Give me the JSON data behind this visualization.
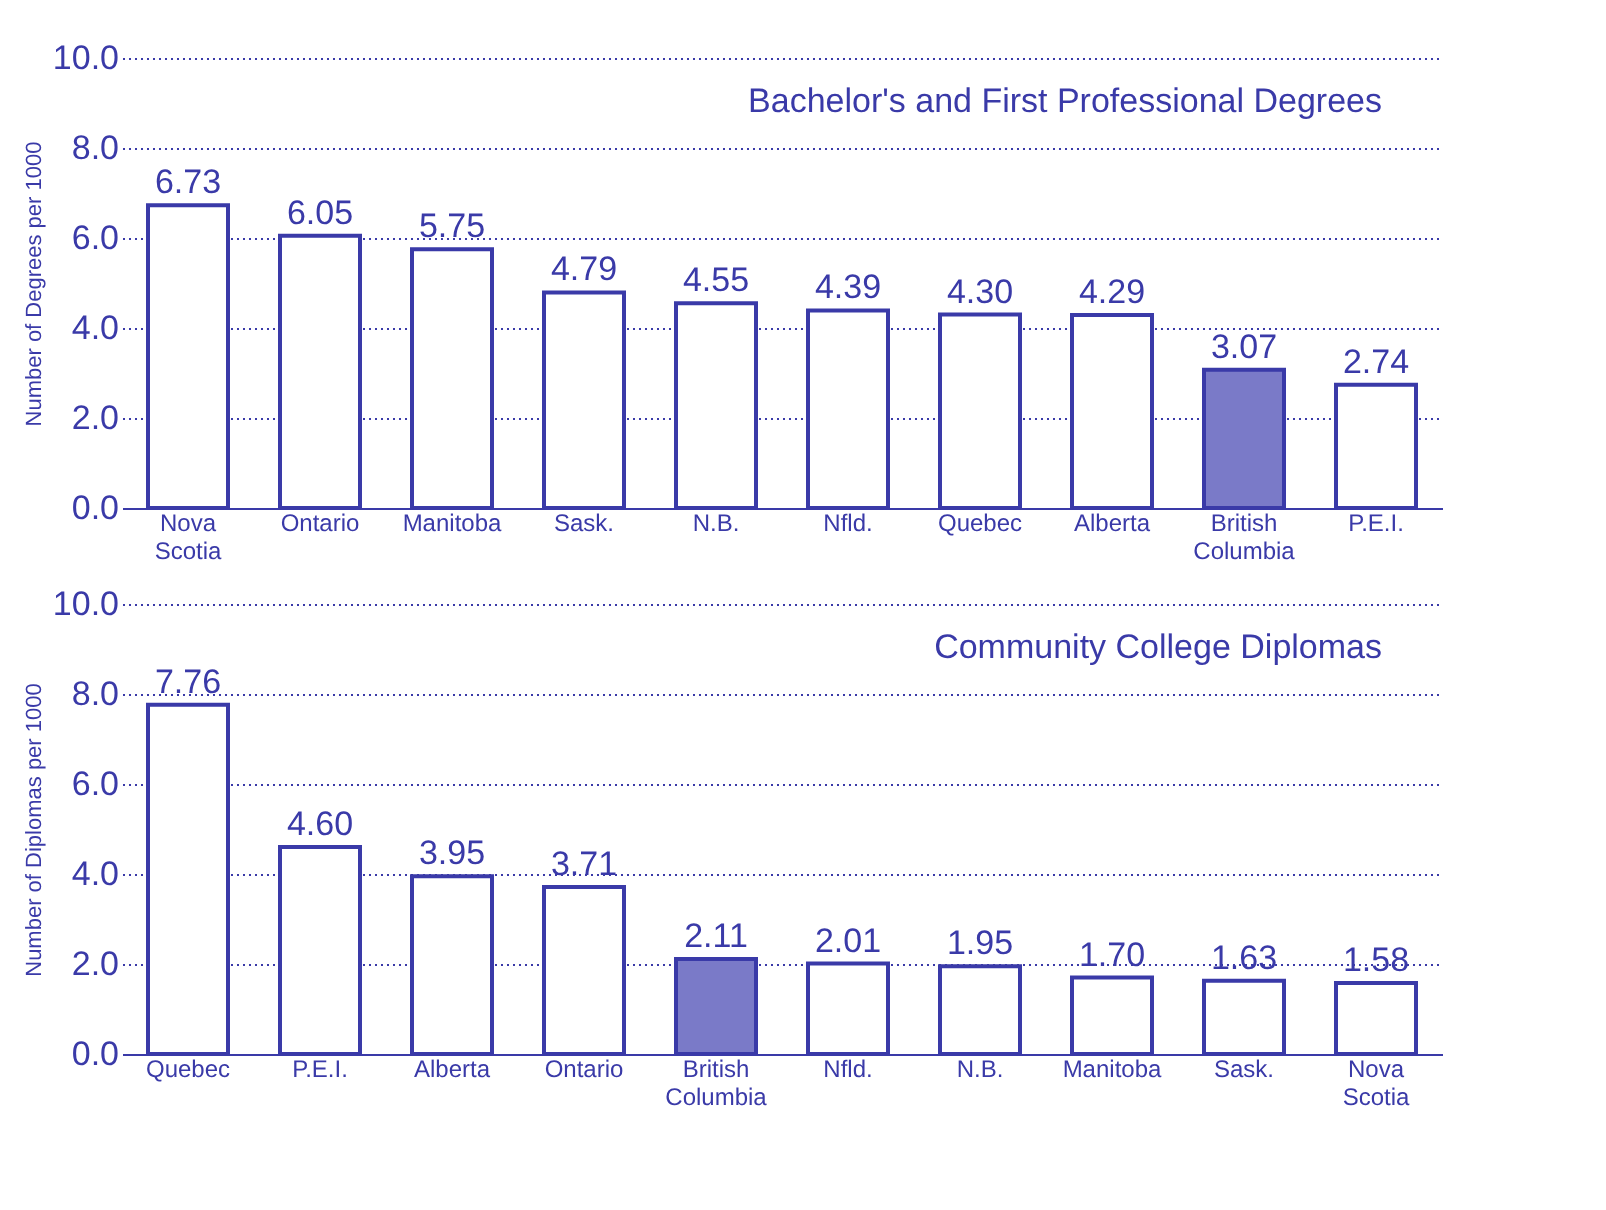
{
  "chart_data": [
    {
      "type": "bar",
      "title": "Bachelor's and First Professional Degrees",
      "ylabel": "Number of Degrees per 1000",
      "categories": [
        "Nova Scotia",
        "Ontario",
        "Manitoba",
        "Sask.",
        "N.B.",
        "Nfld.",
        "Quebec",
        "Alberta",
        "British Columbia",
        "P.E.I."
      ],
      "values": [
        6.73,
        6.05,
        5.75,
        4.79,
        4.55,
        4.39,
        4.3,
        4.29,
        3.07,
        2.74
      ],
      "colors": [
        "#ffffff",
        "#ffffff",
        "#ffffff",
        "#ffffff",
        "#ffffff",
        "#ffffff",
        "#ffffff",
        "#ffffff",
        "#7a7ac8",
        "#ffffff"
      ],
      "ylim": [
        0,
        10
      ],
      "yticks": [
        {
          "value": 0,
          "label": "0.0"
        },
        {
          "value": 2,
          "label": "2.0"
        },
        {
          "value": 4,
          "label": "4.0"
        },
        {
          "value": 6,
          "label": "6.0"
        },
        {
          "value": 8,
          "label": "8.0"
        },
        {
          "value": 10,
          "label": "10.0"
        }
      ],
      "grid": "y",
      "value_labels": [
        "6.73",
        "6.05",
        "5.75",
        "4.79",
        "4.55",
        "4.39",
        "4.30",
        "4.29",
        "3.07",
        "2.74"
      ]
    },
    {
      "type": "bar",
      "title": "Community College Diplomas",
      "ylabel": "Number of Diplomas per 1000",
      "categories": [
        "Quebec",
        "P.E.I.",
        "Alberta",
        "Ontario",
        "British Columbia",
        "Nfld.",
        "N.B.",
        "Manitoba",
        "Sask.",
        "Nova Scotia"
      ],
      "values": [
        7.76,
        4.6,
        3.95,
        3.71,
        2.11,
        2.01,
        1.95,
        1.7,
        1.63,
        1.58
      ],
      "colors": [
        "#ffffff",
        "#ffffff",
        "#ffffff",
        "#ffffff",
        "#7a7ac8",
        "#ffffff",
        "#ffffff",
        "#ffffff",
        "#ffffff",
        "#ffffff"
      ],
      "ylim": [
        0,
        10
      ],
      "yticks": [
        {
          "value": 0,
          "label": "0.0"
        },
        {
          "value": 2,
          "label": "2.0"
        },
        {
          "value": 4,
          "label": "4.0"
        },
        {
          "value": 6,
          "label": "6.0"
        },
        {
          "value": 8,
          "label": "8.0"
        },
        {
          "value": 10,
          "label": "10.0"
        }
      ],
      "grid": "y",
      "value_labels": [
        "7.76",
        "4.60",
        "3.95",
        "3.71",
        "2.11",
        "2.01",
        "1.95",
        "1.70",
        "1.63",
        "1.58"
      ]
    }
  ]
}
